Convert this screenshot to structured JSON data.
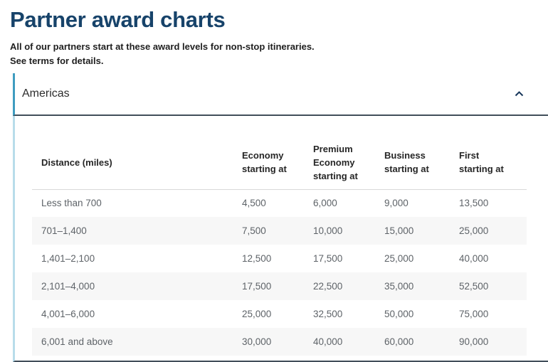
{
  "page": {
    "title": "Partner award charts",
    "subtitle_line1": "All of our partners start at these award levels for non-stop itineraries.",
    "subtitle_line2": "See terms for details."
  },
  "accordion": {
    "label": "Americas",
    "expanded": true,
    "chevron_icon": "chevron-up"
  },
  "colors": {
    "title_navy": "#17436a",
    "accent_teal": "#3f9cc0",
    "light_blue_border": "#b8dcea",
    "dark_border": "#414e5a",
    "row_alt_gray": "#f7f7f7",
    "cell_text_gray": "#5e6368"
  },
  "chart_data": {
    "type": "table",
    "title": "Americas partner award chart",
    "columns": [
      "Distance (miles)",
      "Economy starting at",
      "Premium Economy starting at",
      "Business starting at",
      "First starting at"
    ],
    "rows": [
      [
        "Less than 700",
        "4,500",
        "6,000",
        "9,000",
        "13,500"
      ],
      [
        "701–1,400",
        "7,500",
        "10,000",
        "15,000",
        "25,000"
      ],
      [
        "1,401–2,100",
        "12,500",
        "17,500",
        "25,000",
        "40,000"
      ],
      [
        "2,101–4,000",
        "17,500",
        "22,500",
        "35,000",
        "52,500"
      ],
      [
        "4,001–6,000",
        "25,000",
        "32,500",
        "50,000",
        "75,000"
      ],
      [
        "6,001 and above",
        "30,000",
        "40,000",
        "60,000",
        "90,000"
      ]
    ]
  }
}
